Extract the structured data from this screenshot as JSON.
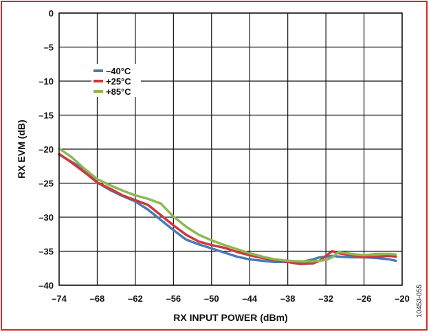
{
  "figure_id": "10453-055",
  "chart_data": {
    "type": "line",
    "xlabel": "RX INPUT POWER (dBm)",
    "ylabel": "RX EVM (dB)",
    "xlim": [
      -74,
      -20
    ],
    "ylim": [
      -40,
      0
    ],
    "xticks": [
      -74,
      -68,
      -62,
      -56,
      -50,
      -44,
      -38,
      -32,
      -26,
      -20
    ],
    "yticks": [
      0,
      -5,
      -10,
      -15,
      -20,
      -25,
      -30,
      -35,
      -40
    ],
    "xtick_labels": [
      "–74",
      "–68",
      "–62",
      "–56",
      "–50",
      "–44",
      "–38",
      "–32",
      "–26",
      "–20"
    ],
    "ytick_labels": [
      "0",
      "–5",
      "–10",
      "–15",
      "–20",
      "–25",
      "–30",
      "–35",
      "–40"
    ],
    "grid": true,
    "legend_position": "top-left",
    "series": [
      {
        "name": "–40°C",
        "color": "#4a7ab8",
        "x": [
          -74,
          -72,
          -70,
          -68,
          -66,
          -64,
          -62,
          -60,
          -58,
          -56,
          -54,
          -52,
          -50,
          -48,
          -46,
          -44,
          -42,
          -40,
          -38,
          -36,
          -34,
          -33,
          -32,
          -31,
          -30,
          -28,
          -26,
          -24,
          -22,
          -21
        ],
        "y": [
          -20.8,
          -21.9,
          -23.0,
          -24.9,
          -26.0,
          -26.9,
          -27.7,
          -28.9,
          -30.4,
          -31.9,
          -33.3,
          -34.0,
          -34.6,
          -35.2,
          -35.8,
          -36.2,
          -36.4,
          -36.6,
          -36.6,
          -36.6,
          -36.2,
          -35.9,
          -35.8,
          -35.7,
          -35.8,
          -35.9,
          -35.9,
          -36.0,
          -36.2,
          -36.4
        ]
      },
      {
        "name": "+25°C",
        "color": "#cc3a3a",
        "x": [
          -74,
          -72,
          -70,
          -68,
          -66,
          -64,
          -62,
          -60,
          -58,
          -56,
          -54,
          -52,
          -50,
          -48,
          -46,
          -44,
          -42,
          -40,
          -38,
          -36,
          -34,
          -33,
          -32,
          -31,
          -30,
          -28,
          -26,
          -24,
          -22,
          -21
        ],
        "y": [
          -20.7,
          -22.0,
          -23.4,
          -24.9,
          -25.8,
          -26.8,
          -27.5,
          -28.2,
          -29.7,
          -31.2,
          -32.6,
          -33.6,
          -34.1,
          -34.5,
          -35.1,
          -35.6,
          -36.0,
          -36.3,
          -36.6,
          -36.9,
          -36.8,
          -36.4,
          -35.7,
          -35.0,
          -35.3,
          -35.6,
          -35.9,
          -35.8,
          -35.7,
          -35.8
        ]
      },
      {
        "name": "+85°C",
        "color": "#8fb655",
        "x": [
          -74,
          -72,
          -70,
          -68,
          -66,
          -64,
          -62,
          -60,
          -58,
          -56,
          -54,
          -52,
          -50,
          -48,
          -46,
          -44,
          -42,
          -40,
          -38,
          -36,
          -34,
          -33,
          -32,
          -31,
          -30,
          -28,
          -26,
          -24,
          -22,
          -21
        ],
        "y": [
          -19.9,
          -21.2,
          -22.9,
          -24.4,
          -25.3,
          -26.1,
          -26.8,
          -27.3,
          -28.0,
          -29.9,
          -31.4,
          -32.6,
          -33.4,
          -34.1,
          -34.7,
          -35.3,
          -35.8,
          -36.2,
          -36.4,
          -36.5,
          -36.5,
          -36.4,
          -36.3,
          -35.9,
          -35.1,
          -35.4,
          -35.6,
          -35.4,
          -35.4,
          -35.5
        ]
      }
    ]
  }
}
